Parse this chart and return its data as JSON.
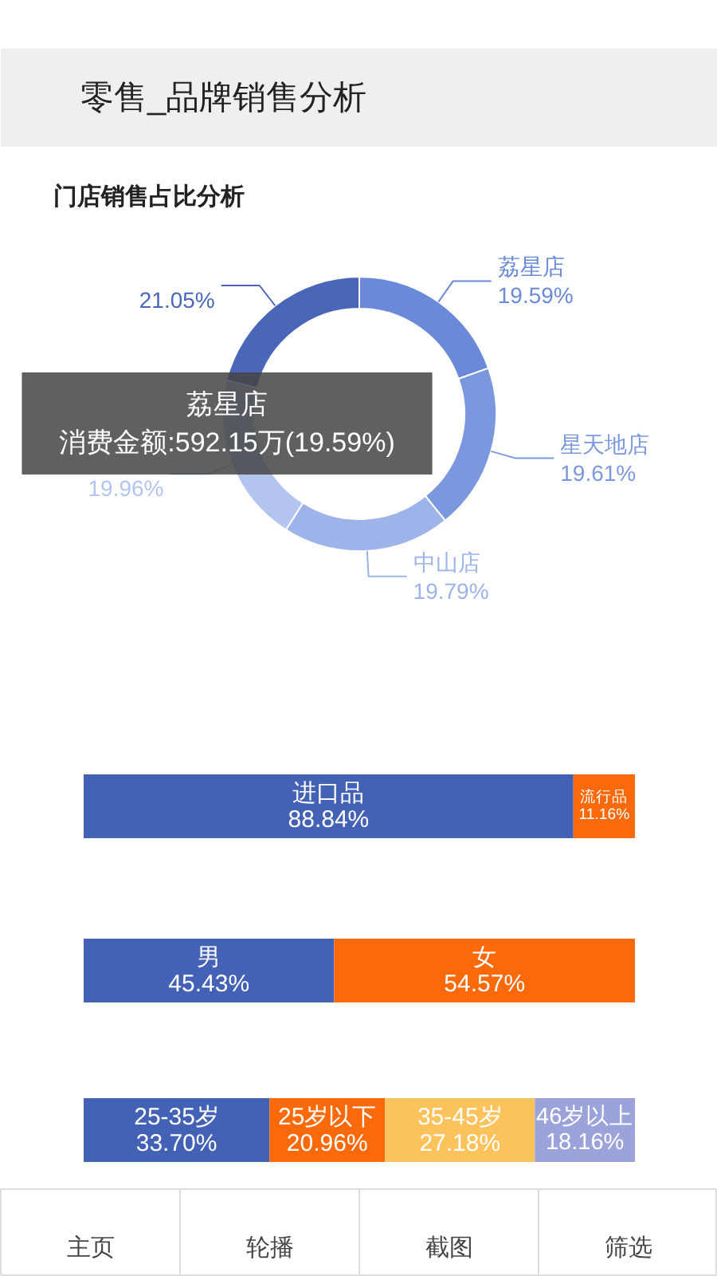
{
  "chart_data": [
    {
      "type": "donut",
      "title": "零售_品牌销售分析",
      "subtitle": "门店销售占比分析",
      "categories": [
        "荔星店",
        "星天地店",
        "中山店",
        null,
        null
      ],
      "values": [
        19.59,
        19.61,
        19.79,
        19.96,
        21.05
      ],
      "colors": [
        "#6a8ad9",
        "#7b98de",
        "#9db3e9",
        "#b3c5ef",
        "#4a66b9"
      ],
      "value_labels": [
        "19.59%",
        "19.61%",
        "19.79%",
        "19.96%",
        "21.05%"
      ],
      "annotations": [
        "荔星店",
        "消费金额:592.15万(19.59%)"
      ]
    },
    {
      "type": "bar",
      "orientation": "horizontal",
      "stacked": true,
      "categories": [
        null
      ],
      "series": [
        {
          "name": "进口品",
          "color": "#4462b5",
          "values": [
            88.84
          ],
          "value_labels": [
            "88.84%"
          ]
        },
        {
          "name": "流行品",
          "color": "#fb6a0a",
          "values": [
            11.16
          ],
          "value_labels": [
            "11.16%"
          ]
        }
      ]
    },
    {
      "type": "bar",
      "orientation": "horizontal",
      "stacked": true,
      "categories": [
        null
      ],
      "series": [
        {
          "name": "男",
          "color": "#4462b5",
          "values": [
            45.43
          ],
          "value_labels": [
            "45.43%"
          ]
        },
        {
          "name": "女",
          "color": "#fb6a0a",
          "values": [
            54.57
          ],
          "value_labels": [
            "54.57%"
          ]
        }
      ]
    },
    {
      "type": "bar",
      "orientation": "horizontal",
      "stacked": true,
      "categories": [
        null
      ],
      "series": [
        {
          "name": "25-35岁",
          "color": "#4462b5",
          "values": [
            33.7
          ],
          "value_labels": [
            "33.70%"
          ]
        },
        {
          "name": "25岁以下",
          "color": "#fb6a0a",
          "values": [
            20.96
          ],
          "value_labels": [
            "20.96%"
          ]
        },
        {
          "name": "35-45岁",
          "color": "#fcc25b",
          "values": [
            27.18
          ],
          "value_labels": [
            "27.18%"
          ]
        },
        {
          "name": "46岁以上",
          "color": "#9ca3da",
          "values": [
            18.16
          ],
          "value_labels": [
            "18.16%"
          ]
        }
      ]
    },
    {
      "type": "other",
      "annotations": [
        "主页",
        "轮播",
        "截图",
        "筛选"
      ]
    }
  ]
}
